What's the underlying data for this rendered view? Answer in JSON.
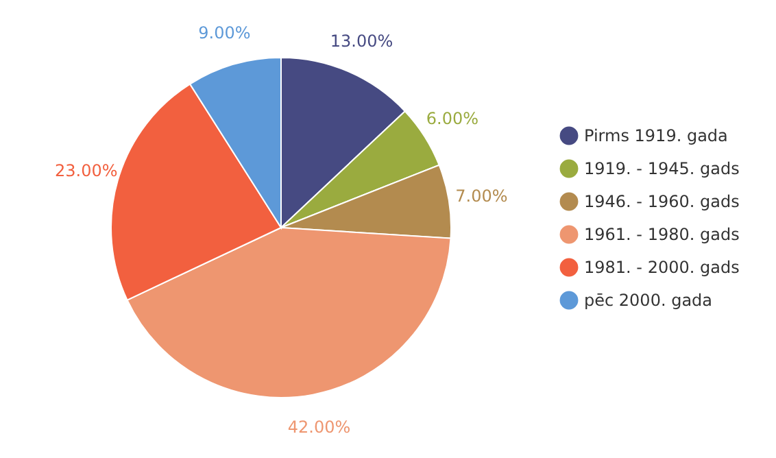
{
  "chart_data": {
    "type": "pie",
    "categories": [
      "Pirms 1919. gada",
      "1919. - 1945. gads",
      "1946. - 1960. gads",
      "1961. - 1980. gads",
      "1981. - 2000. gads",
      "pēc 2000. gada"
    ],
    "values": [
      13,
      6,
      7,
      42,
      23,
      9
    ],
    "value_labels": [
      "13.00%",
      "6.00%",
      "7.00%",
      "42.00%",
      "23.00%",
      "9.00%"
    ],
    "colors": [
      "#464a82",
      "#9aab3f",
      "#b38b4f",
      "#ee9670",
      "#f2603f",
      "#5d99d8"
    ],
    "legend": "right"
  }
}
